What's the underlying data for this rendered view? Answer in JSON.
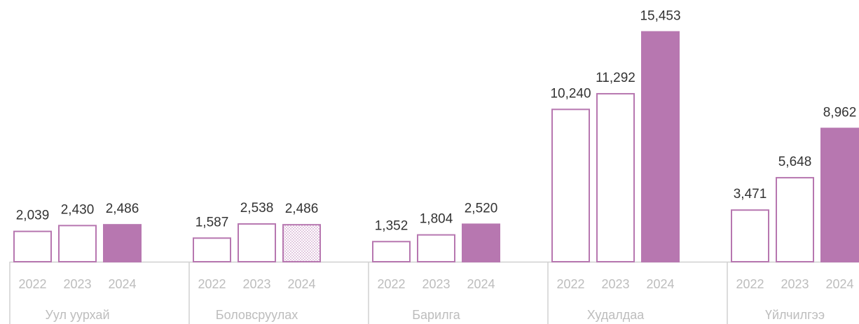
{
  "chart_data": {
    "type": "bar",
    "categories": [
      "Уул уурхай",
      "Боловсруулах",
      "Барилга",
      "Худалдаа",
      "Үйлчилгээ"
    ],
    "series": [
      {
        "name": "2022",
        "color": "#b777b0",
        "filled": false,
        "values": [
          2039,
          1587,
          1352,
          10240,
          3471
        ],
        "value_labels": [
          "2,039",
          "1,587",
          "1,352",
          "10,240",
          "3,471"
        ]
      },
      {
        "name": "2023",
        "color": "#b777b0",
        "filled": false,
        "values": [
          2430,
          2538,
          1804,
          11292,
          5648
        ],
        "value_labels": [
          "2,430",
          "2,538",
          "1,804",
          "11,292",
          "5,648"
        ]
      },
      {
        "name": "2024",
        "color": "#b777b0",
        "filled": true,
        "dotted": [
          false,
          true,
          false,
          false,
          false
        ],
        "values": [
          2486,
          2486,
          2520,
          15453,
          8962
        ],
        "value_labels": [
          "2,486",
          "2,486",
          "2,520",
          "15,453",
          "8,962"
        ]
      }
    ],
    "ylim": [
      0,
      17500
    ]
  }
}
